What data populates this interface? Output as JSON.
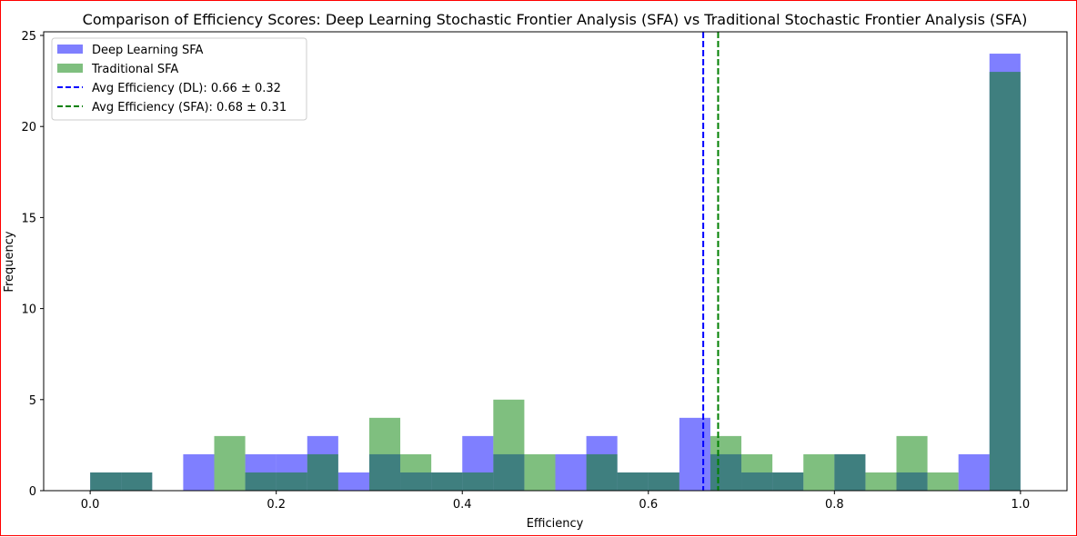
{
  "chart_data": {
    "type": "histogram",
    "title": "Comparison of Efficiency Scores: Deep Learning Stochastic Frontier Analysis (SFA) vs Traditional Stochastic Frontier Analysis (SFA)",
    "xlabel": "Efficiency",
    "ylabel": "Frequency",
    "xlim": [
      -0.05,
      1.05
    ],
    "ylim": [
      0,
      25.2
    ],
    "xticks": [
      0.0,
      0.2,
      0.4,
      0.6,
      0.8,
      1.0
    ],
    "xtick_labels": [
      "0.0",
      "0.2",
      "0.4",
      "0.6",
      "0.8",
      "1.0"
    ],
    "yticks": [
      0,
      5,
      10,
      15,
      20,
      25
    ],
    "ytick_labels": [
      "0",
      "5",
      "10",
      "15",
      "20",
      "25"
    ],
    "bin_width": 0.0333,
    "bin_edges_start": 0.0,
    "series": [
      {
        "name": "Deep Learning SFA",
        "color": "#0000ff",
        "alpha": 0.5,
        "counts": [
          1,
          1,
          0,
          2,
          0,
          2,
          2,
          3,
          1,
          2,
          1,
          1,
          3,
          2,
          0,
          2,
          3,
          1,
          1,
          4,
          2,
          1,
          1,
          0,
          2,
          0,
          1,
          0,
          2,
          24
        ]
      },
      {
        "name": "Traditional SFA",
        "color": "#008000",
        "alpha": 0.5,
        "start": 0.0,
        "end": 1.0,
        "counts": [
          1,
          1,
          0,
          0,
          3,
          1,
          1,
          2,
          0,
          4,
          2,
          1,
          1,
          5,
          2,
          0,
          2,
          1,
          1,
          0,
          3,
          2,
          1,
          2,
          2,
          1,
          3,
          1,
          0,
          23
        ]
      }
    ],
    "vlines": [
      {
        "label": "Avg Efficiency (DL): 0.66 ± 0.32",
        "x": 0.659,
        "color": "#0000ff",
        "style": "dashed"
      },
      {
        "label": "Avg Efficiency (SFA): 0.68 ± 0.31",
        "x": 0.675,
        "color": "#008000",
        "style": "dashed"
      }
    ],
    "legend_position": "upper left"
  }
}
